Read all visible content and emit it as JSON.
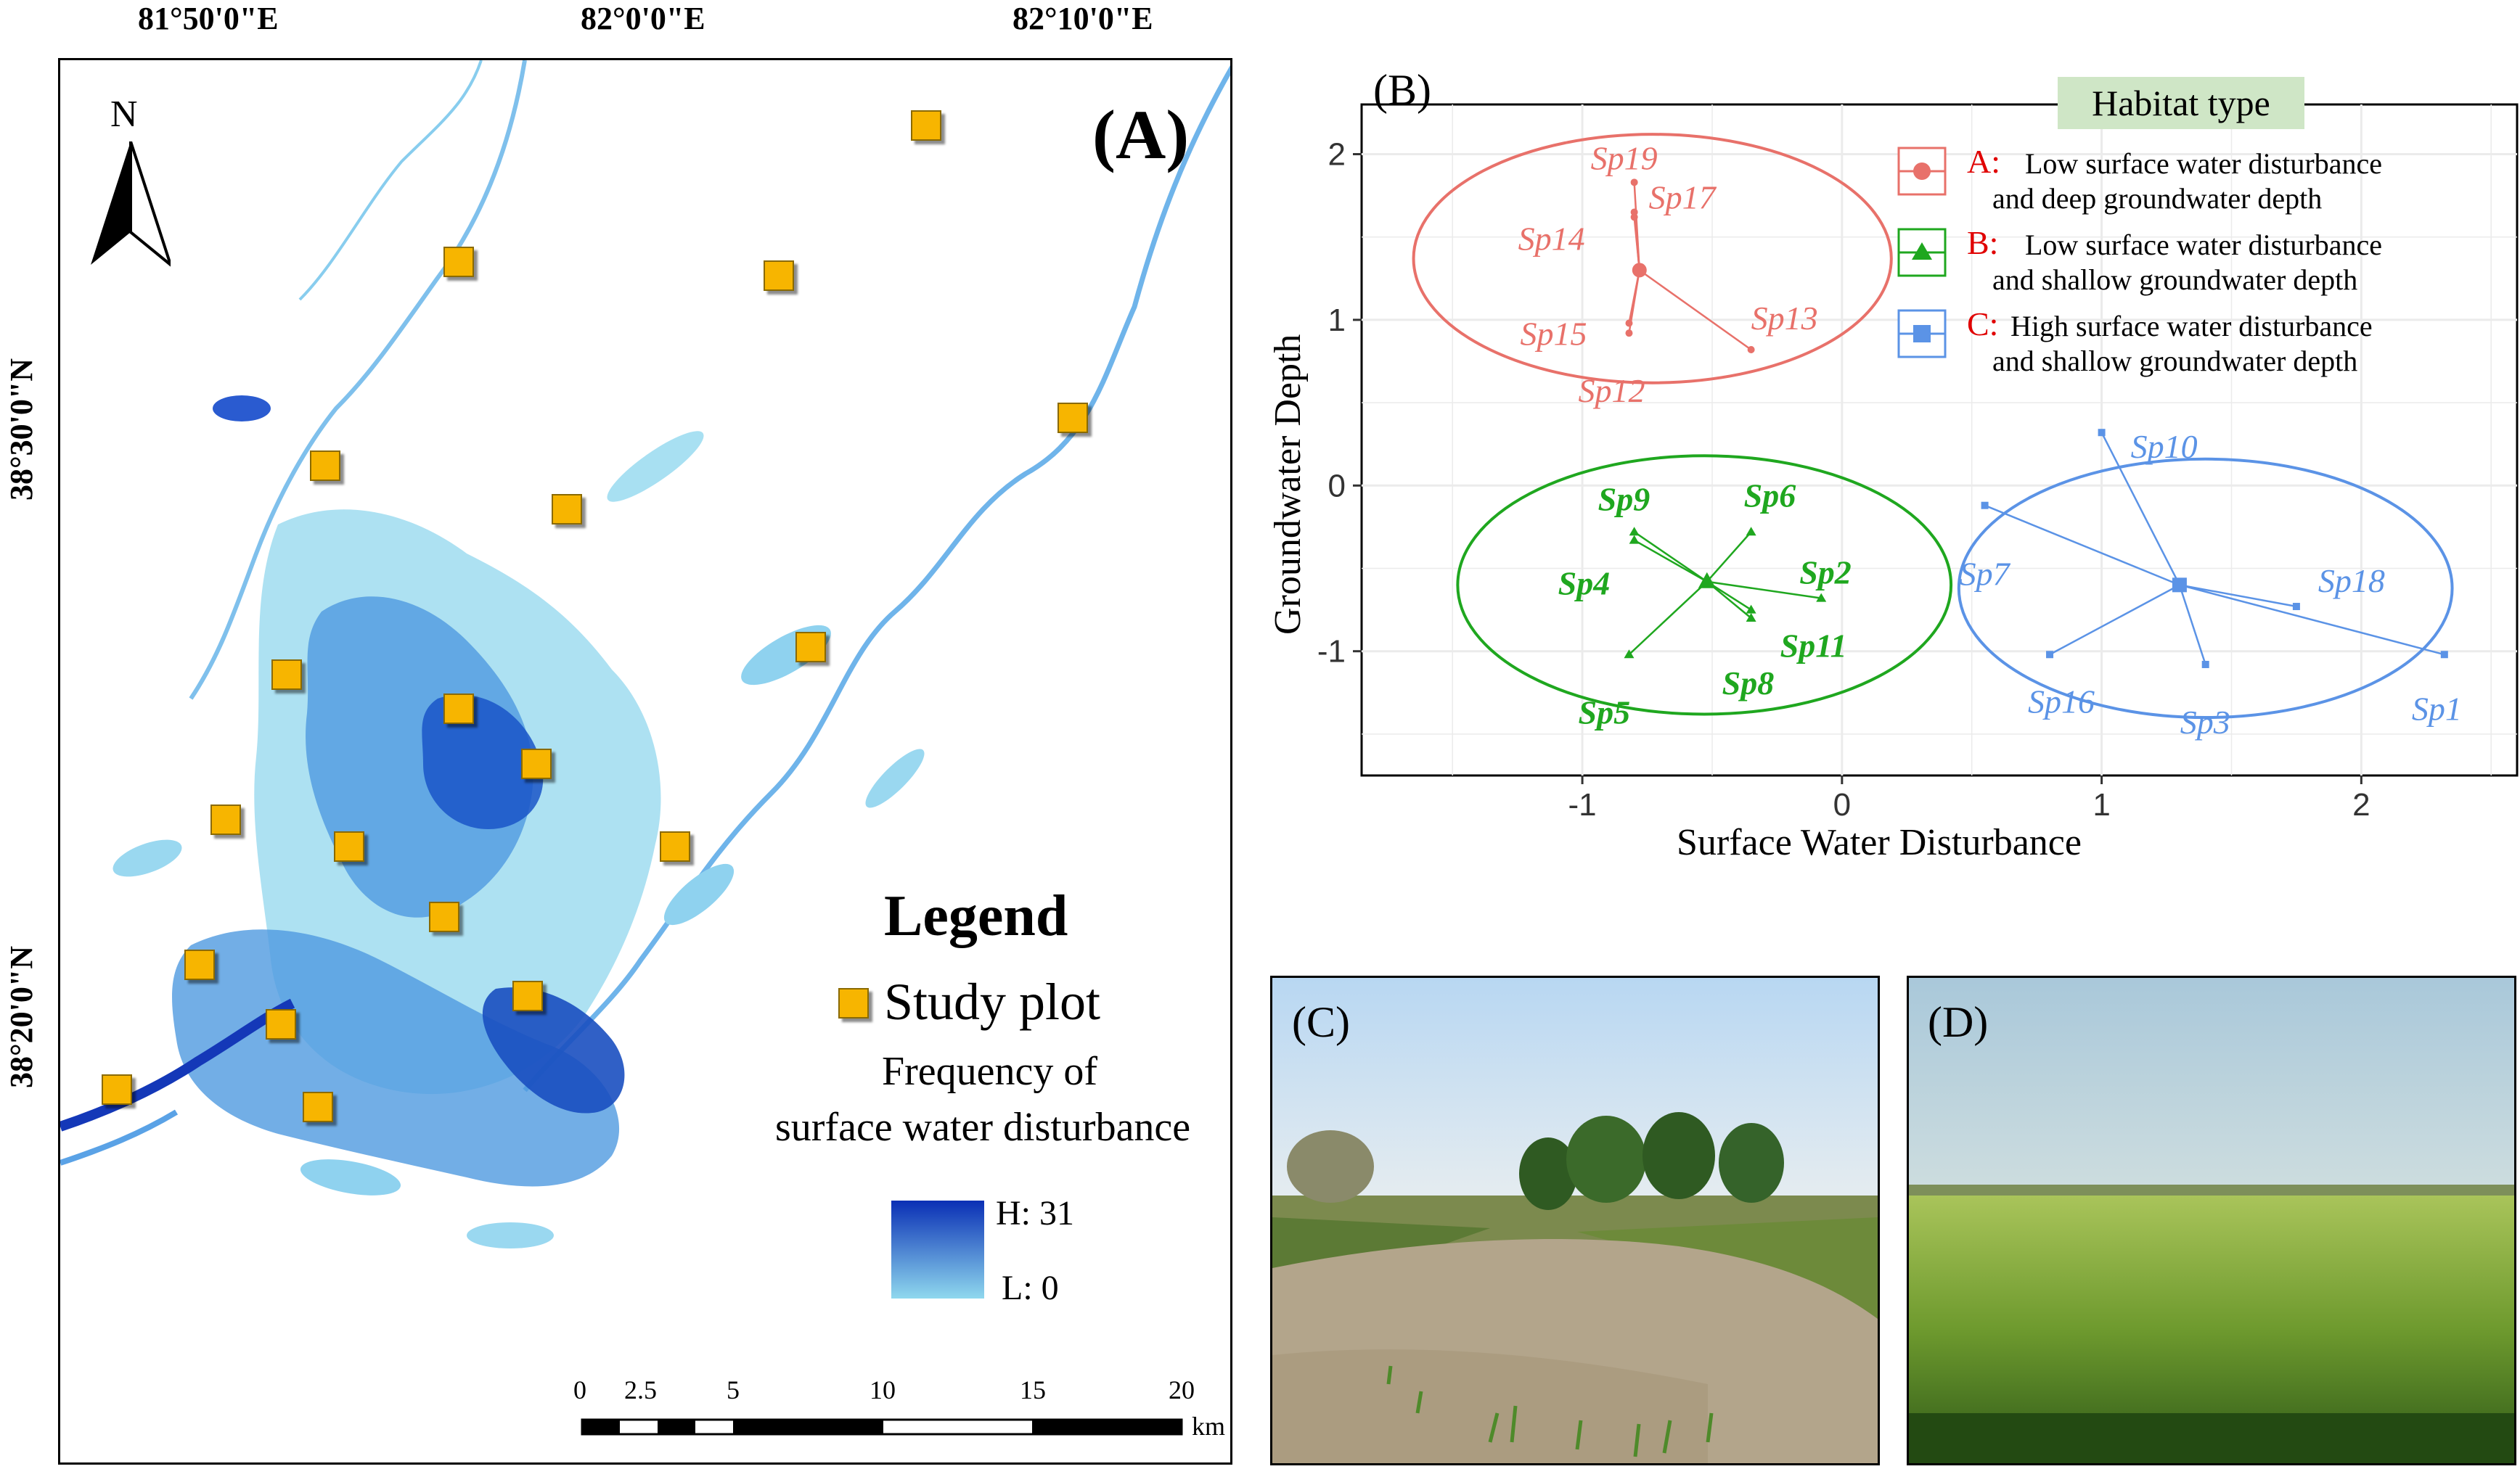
{
  "panel_a": {
    "label": "(A)",
    "lon_ticks": [
      "81°50'0\"E",
      "82°0'0\"E",
      "82°10'0\"E"
    ],
    "lat_ticks": [
      "38°30'0\"N",
      "38°20'0\"N"
    ],
    "north_arrow": "N",
    "legend": {
      "title": "Legend",
      "plot_label": "Study plot",
      "freq_line1": "Frequency of",
      "freq_line2": "surface water disturbance",
      "high_label": "H: 31",
      "low_label": "L: 0"
    },
    "scale": {
      "ticks": [
        "0",
        "2.5",
        "5",
        "10",
        "15",
        "20"
      ],
      "unit": "km"
    },
    "colors": {
      "plot": "#f7b500",
      "water_high": "#0a2fb5",
      "water_low": "#8fd8ee"
    }
  },
  "panel_b": {
    "label": "(B)",
    "legend_title": "Habitat type",
    "legend": [
      {
        "key": "A:",
        "line1": "Low surface water disturbance",
        "line2": "and deep groundwater depth",
        "color": "#e8716a"
      },
      {
        "key": "B:",
        "line1": "Low surface water disturbance",
        "line2": "and shallow groundwater depth",
        "color": "#1fa71f"
      },
      {
        "key": "C:",
        "line1": "High surface water disturbance",
        "line2": "and shallow groundwater depth",
        "color": "#5b93e6"
      }
    ]
  },
  "chart_data": {
    "type": "scatter",
    "xlabel": "Surface Water Disturbance",
    "ylabel": "Groundwater Depth",
    "xlim": [
      -1.85,
      2.6
    ],
    "ylim": [
      -1.75,
      2.3
    ],
    "xticks": [
      -1,
      0,
      1,
      2
    ],
    "yticks": [
      -1,
      0,
      1,
      2
    ],
    "grid": true,
    "series": [
      {
        "name": "A",
        "color": "#e8716a",
        "centroid": [
          -0.78,
          1.3
        ],
        "ellipse": {
          "cx": -0.73,
          "cy": 1.37,
          "rx": 0.92,
          "ry": 0.75
        },
        "points": [
          {
            "label": "Sp19",
            "x": -0.8,
            "y": 1.83
          },
          {
            "label": "Sp17",
            "x": -0.8,
            "y": 1.65
          },
          {
            "label": "Sp14",
            "x": -0.8,
            "y": 1.62
          },
          {
            "label": "Sp15",
            "x": -0.82,
            "y": 0.98
          },
          {
            "label": "Sp12",
            "x": -0.82,
            "y": 0.92
          },
          {
            "label": "Sp13",
            "x": -0.35,
            "y": 0.82
          }
        ]
      },
      {
        "name": "B",
        "color": "#1fa71f",
        "centroid": [
          -0.52,
          -0.58
        ],
        "ellipse": {
          "cx": -0.53,
          "cy": -0.6,
          "rx": 0.95,
          "ry": 0.78
        },
        "points": [
          {
            "label": "Sp9",
            "x": -0.8,
            "y": -0.28
          },
          {
            "label": "Sp4",
            "x": -0.8,
            "y": -0.33
          },
          {
            "label": "Sp6",
            "x": -0.35,
            "y": -0.28
          },
          {
            "label": "Sp2",
            "x": -0.08,
            "y": -0.68
          },
          {
            "label": "Sp11",
            "x": -0.35,
            "y": -0.75
          },
          {
            "label": "Sp8",
            "x": -0.35,
            "y": -0.8
          },
          {
            "label": "Sp5",
            "x": -0.82,
            "y": -1.02
          }
        ]
      },
      {
        "name": "C",
        "color": "#5b93e6",
        "centroid": [
          1.3,
          -0.6
        ],
        "ellipse": {
          "cx": 1.4,
          "cy": -0.62,
          "rx": 0.95,
          "ry": 0.78
        },
        "points": [
          {
            "label": "Sp10",
            "x": 1.0,
            "y": 0.32
          },
          {
            "label": "Sp7",
            "x": 0.55,
            "y": -0.12
          },
          {
            "label": "Sp18",
            "x": 1.75,
            "y": -0.73
          },
          {
            "label": "Sp16",
            "x": 0.8,
            "y": -1.02
          },
          {
            "label": "Sp3",
            "x": 1.4,
            "y": -1.08
          },
          {
            "label": "Sp1",
            "x": 2.32,
            "y": -1.02
          }
        ]
      }
    ]
  },
  "panel_c": {
    "label": "(C)"
  },
  "panel_d": {
    "label": "(D)"
  }
}
